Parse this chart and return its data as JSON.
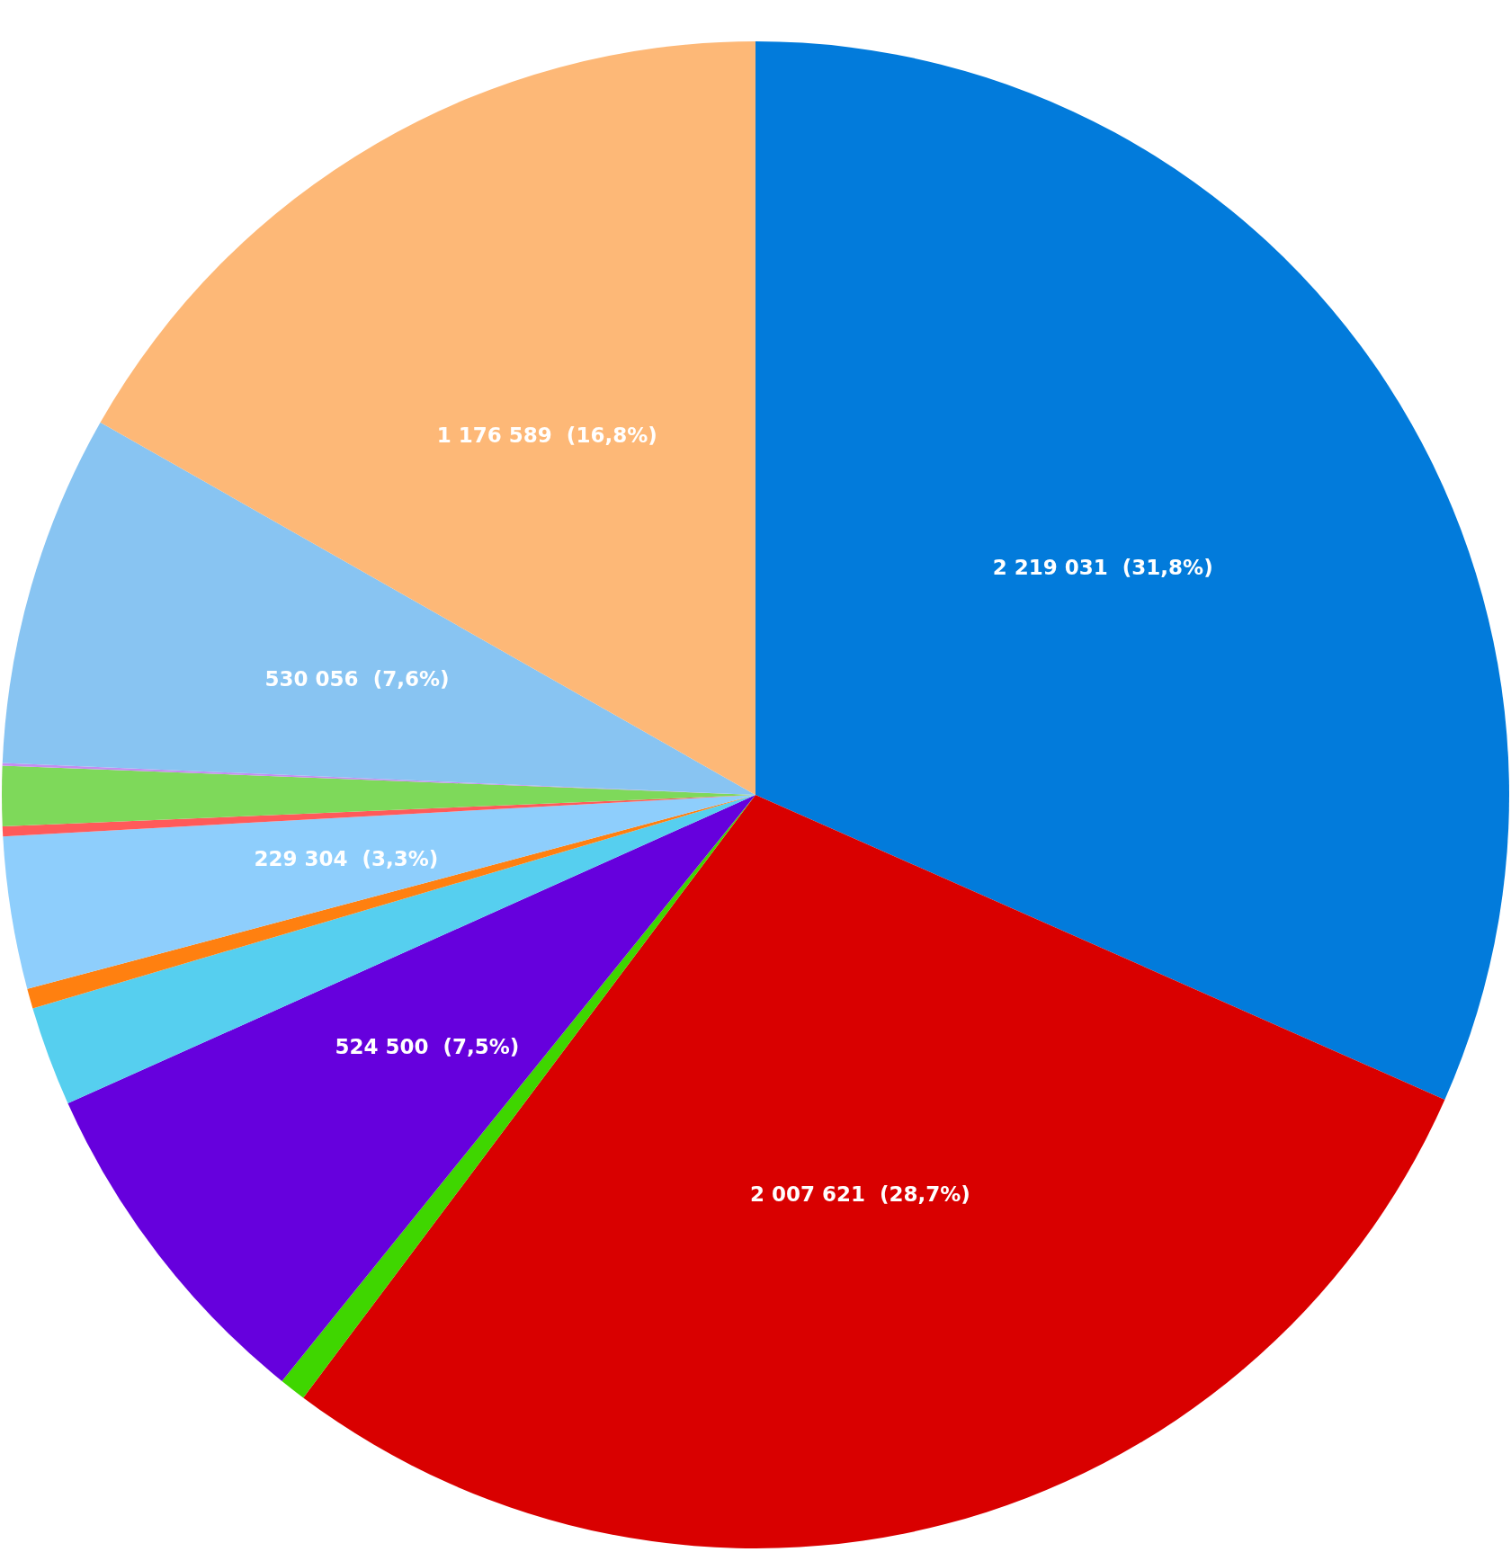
{
  "chart_data": {
    "type": "pie",
    "categories": [
      null,
      null,
      null,
      null,
      null,
      null,
      null,
      null,
      null,
      null,
      null,
      null
    ],
    "values": [
      2219031,
      2007621,
      40000,
      524500,
      150000,
      30000,
      229304,
      15000,
      90000,
      4000,
      530056,
      1176589
    ],
    "colors": [
      "#027bdb",
      "#d90000",
      "#3fd600",
      "#6600dd",
      "#56cfef",
      "#ff8010",
      "#8ecefc",
      "#ff5a5a",
      "#7ed95a",
      "#c58cf0",
      "#88c4f2",
      "#fdb877"
    ],
    "value_labels": [
      "2 219 031  (31,8%)",
      "2 007 621  (28,7%)",
      null,
      "524 500  (7,5%)",
      null,
      null,
      "229 304  (3,3%)",
      null,
      null,
      null,
      "530 056  (7,6%)",
      "1 176 589  (16,8%)"
    ]
  }
}
